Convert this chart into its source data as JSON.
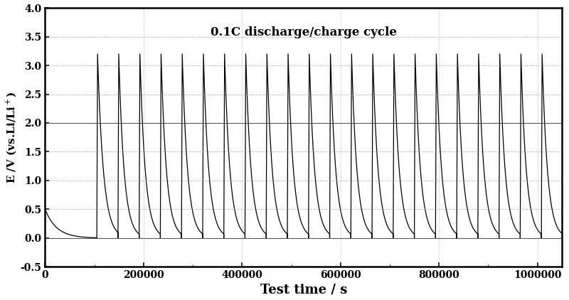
{
  "title": "0.1C discharge/charge cycle",
  "xlabel": "Test time / s",
  "ylabel": "E /V (vs.Li/Li$^+$)",
  "xlim": [
    0,
    1050000
  ],
  "ylim": [
    -0.5,
    4.0
  ],
  "xticks": [
    0,
    200000,
    400000,
    600000,
    800000,
    1000000
  ],
  "yticks": [
    -0.5,
    0.0,
    0.5,
    1.0,
    1.5,
    2.0,
    2.5,
    3.0,
    3.5,
    4.0
  ],
  "ytick_labels": [
    "-0.5",
    "0.0",
    "0.5",
    "1.0",
    "1.5",
    "2.0",
    "2.5",
    "3.0",
    "3.5",
    "4.0"
  ],
  "line_color": "#000000",
  "bg_color": "#ffffff",
  "grid_dotted_color": "#888888",
  "grid_solid_color": "#444444",
  "figsize": [
    8.0,
    4.22
  ],
  "dpi": 100,
  "v_max": 3.2,
  "v_min": 0.0,
  "formation_duration": 105000,
  "formation_v_start": 0.5,
  "cycle_period": 43000,
  "num_cycles": 22,
  "cycle_start": 148000
}
